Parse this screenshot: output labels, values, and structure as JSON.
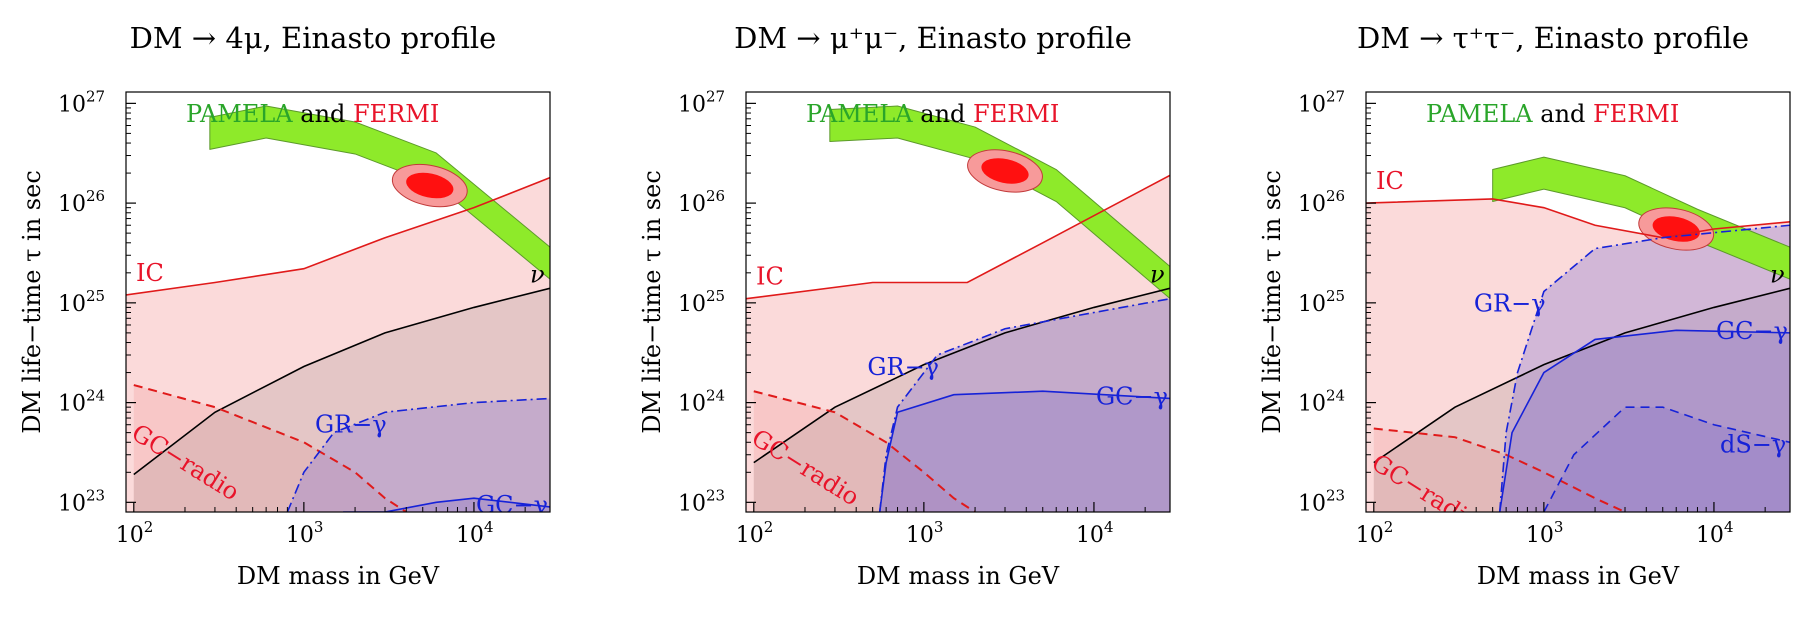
{
  "chart_data": [
    {
      "type": "area",
      "title": "DM → 4μ, Einasto profile",
      "xlabel": "DM mass in GeV",
      "ylabel": "DM life−time τ in sec",
      "xscale": "log",
      "yscale": "log",
      "xlim": [
        90,
        28000
      ],
      "ylim": [
        8e+22,
        1.3e+27
      ],
      "xticks": [
        "10^2",
        "10^3",
        "10^4"
      ],
      "yticks": [
        "10^23",
        "10^24",
        "10^25",
        "10^26",
        "10^27"
      ],
      "header": {
        "pamela": "PAMELA",
        "and": "and",
        "fermi": "FERMI"
      },
      "labels": {
        "ic": "IC",
        "nu": "ν",
        "gc_radio": "GC−radio",
        "gr_gamma": "GR−γ",
        "gc_gamma": "GC−γ"
      },
      "series": [
        {
          "name": "IC",
          "points": [
            [
              90,
              1.2e+25
            ],
            [
              300,
              1.6e+25
            ],
            [
              1000,
              2.2e+25
            ],
            [
              3000,
              4.5e+25
            ],
            [
              10000,
              9e+25
            ],
            [
              28000,
              1.8e+26
            ]
          ]
        },
        {
          "name": "ν",
          "points": [
            [
              100,
              1.9e+23
            ],
            [
              300,
              8e+23
            ],
            [
              1000,
              2.3e+24
            ],
            [
              3000,
              5e+24
            ],
            [
              10000,
              9e+24
            ],
            [
              28000,
              1.4e+25
            ]
          ]
        },
        {
          "name": "GC−radio",
          "points": [
            [
              100,
              1.5e+24
            ],
            [
              300,
              9e+23
            ],
            [
              1000,
              4e+23
            ],
            [
              2000,
              2e+23
            ],
            [
              3000,
              1.1e+23
            ],
            [
              4000,
              8e+22
            ]
          ]
        },
        {
          "name": "GR−γ",
          "points": [
            [
              800,
              8e+22
            ],
            [
              1000,
              2e+23
            ],
            [
              1500,
              5e+23
            ],
            [
              3000,
              8e+23
            ],
            [
              10000,
              1e+24
            ],
            [
              28000,
              1.1e+24
            ]
          ]
        },
        {
          "name": "GC−γ",
          "points": [
            [
              1700,
              8e+22
            ],
            [
              3000,
              8e+22
            ],
            [
              6000,
              1e+23
            ],
            [
              10000,
              1.1e+23
            ],
            [
              28000,
              9e+22
            ]
          ]
        }
      ],
      "pamela_band": [
        [
          280,
          5e+26
        ],
        [
          600,
          6.5e+26
        ],
        [
          2000,
          4.5e+26
        ],
        [
          6000,
          2.2e+26
        ],
        [
          28000,
          2.5e+25
        ]
      ],
      "fermi_region": {
        "center": [
          5500,
          1.5e+26
        ]
      }
    },
    {
      "type": "area",
      "title": "DM → μ⁺μ⁻, Einasto profile",
      "xlabel": "DM mass in GeV",
      "ylabel": "DM life−time τ in sec",
      "xscale": "log",
      "yscale": "log",
      "xlim": [
        90,
        28000
      ],
      "ylim": [
        8e+22,
        1.3e+27
      ],
      "xticks": [
        "10^2",
        "10^3",
        "10^4"
      ],
      "yticks": [
        "10^23",
        "10^24",
        "10^25",
        "10^26",
        "10^27"
      ],
      "header": {
        "pamela": "PAMELA",
        "and": "and",
        "fermi": "FERMI"
      },
      "labels": {
        "ic": "IC",
        "nu": "ν",
        "gc_radio": "GC−radio",
        "gr_gamma": "GR−γ",
        "gc_gamma": "GC−γ"
      },
      "series": [
        {
          "name": "IC",
          "points": [
            [
              90,
              1.1e+25
            ],
            [
              500,
              1.6e+25
            ],
            [
              1800,
              1.6e+25
            ],
            [
              5000,
              4e+25
            ],
            [
              28000,
              1.9e+26
            ]
          ]
        },
        {
          "name": "ν",
          "points": [
            [
              100,
              2.5e+23
            ],
            [
              300,
              9e+23
            ],
            [
              1000,
              2.4e+24
            ],
            [
              3000,
              5e+24
            ],
            [
              10000,
              9e+24
            ],
            [
              28000,
              1.4e+25
            ]
          ]
        },
        {
          "name": "GC−radio",
          "points": [
            [
              100,
              1.3e+24
            ],
            [
              300,
              8e+23
            ],
            [
              600,
              4e+23
            ],
            [
              1000,
              2e+23
            ],
            [
              1500,
              1.1e+23
            ],
            [
              2000,
              8e+22
            ]
          ]
        },
        {
          "name": "GR−γ",
          "points": [
            [
              550,
              8e+22
            ],
            [
              600,
              3e+23
            ],
            [
              700,
              9e+23
            ],
            [
              1200,
              3e+24
            ],
            [
              3000,
              5.5e+24
            ],
            [
              10000,
              8e+24
            ],
            [
              28000,
              1.1e+25
            ]
          ]
        },
        {
          "name": "GC−γ",
          "points": [
            [
              550,
              8e+22
            ],
            [
              600,
              2.5e+23
            ],
            [
              700,
              8e+23
            ],
            [
              1500,
              1.2e+24
            ],
            [
              5000,
              1.3e+24
            ],
            [
              28000,
              1.1e+24
            ]
          ]
        }
      ],
      "pamela_band": [
        [
          280,
          6e+26
        ],
        [
          700,
          6.5e+26
        ],
        [
          2000,
          4e+26
        ],
        [
          6000,
          1.5e+26
        ],
        [
          28000,
          1.6e+25
        ]
      ],
      "fermi_region": {
        "center": [
          3000,
          2.1e+26
        ]
      }
    },
    {
      "type": "area",
      "title": "DM → τ⁺τ⁻, Einasto profile",
      "xlabel": "DM mass in GeV",
      "ylabel": "DM life−time τ in sec",
      "xscale": "log",
      "yscale": "log",
      "xlim": [
        90,
        28000
      ],
      "ylim": [
        8e+22,
        1.3e+27
      ],
      "xticks": [
        "10^2",
        "10^3",
        "10^4"
      ],
      "yticks": [
        "10^23",
        "10^24",
        "10^25",
        "10^26",
        "10^27"
      ],
      "header": {
        "pamela": "PAMELA",
        "and": "and",
        "fermi": "FERMI"
      },
      "labels": {
        "ic": "IC",
        "nu": "ν",
        "gc_radio": "GC−radio",
        "gr_gamma": "GR−γ",
        "gc_gamma": "GC−γ",
        "ds_gamma": "dS−γ"
      },
      "series": [
        {
          "name": "IC",
          "points": [
            [
              90,
              1e+26
            ],
            [
              500,
              1.1e+26
            ],
            [
              1000,
              9e+25
            ],
            [
              2000,
              6e+25
            ],
            [
              5000,
              4.5e+25
            ],
            [
              10000,
              5.5e+25
            ],
            [
              28000,
              6.5e+25
            ]
          ]
        },
        {
          "name": "ν",
          "points": [
            [
              100,
              2.5e+23
            ],
            [
              300,
              9e+23
            ],
            [
              1000,
              2.4e+24
            ],
            [
              3000,
              5e+24
            ],
            [
              10000,
              9e+24
            ],
            [
              28000,
              1.4e+25
            ]
          ]
        },
        {
          "name": "GC−radio",
          "points": [
            [
              100,
              5.5e+23
            ],
            [
              300,
              4.5e+23
            ],
            [
              600,
              3e+23
            ],
            [
              1000,
              2e+23
            ],
            [
              2000,
              1.1e+23
            ],
            [
              3000,
              8e+22
            ]
          ]
        },
        {
          "name": "GR−γ",
          "points": [
            [
              550,
              8e+22
            ],
            [
              600,
              5e+23
            ],
            [
              700,
              2e+24
            ],
            [
              1000,
              1.3e+25
            ],
            [
              2000,
              3.5e+25
            ],
            [
              5000,
              4.5e+25
            ],
            [
              28000,
              6e+25
            ]
          ]
        },
        {
          "name": "GC−γ",
          "points": [
            [
              550,
              8e+22
            ],
            [
              650,
              5e+23
            ],
            [
              1000,
              2e+24
            ],
            [
              2000,
              4.3e+24
            ],
            [
              6000,
              5.3e+24
            ],
            [
              28000,
              5e+24
            ]
          ]
        },
        {
          "name": "dS−γ",
          "points": [
            [
              1000,
              8e+22
            ],
            [
              1500,
              3e+23
            ],
            [
              3000,
              9e+23
            ],
            [
              5000,
              9e+23
            ],
            [
              10000,
              6e+23
            ],
            [
              28000,
              4e+23
            ]
          ]
        }
      ],
      "pamela_band": [
        [
          500,
          1.5e+26
        ],
        [
          1000,
          2e+26
        ],
        [
          3000,
          1.3e+26
        ],
        [
          8000,
          6e+25
        ],
        [
          28000,
          2.5e+25
        ]
      ],
      "fermi_region": {
        "center": [
          6000,
          5.5e+25
        ]
      }
    }
  ]
}
